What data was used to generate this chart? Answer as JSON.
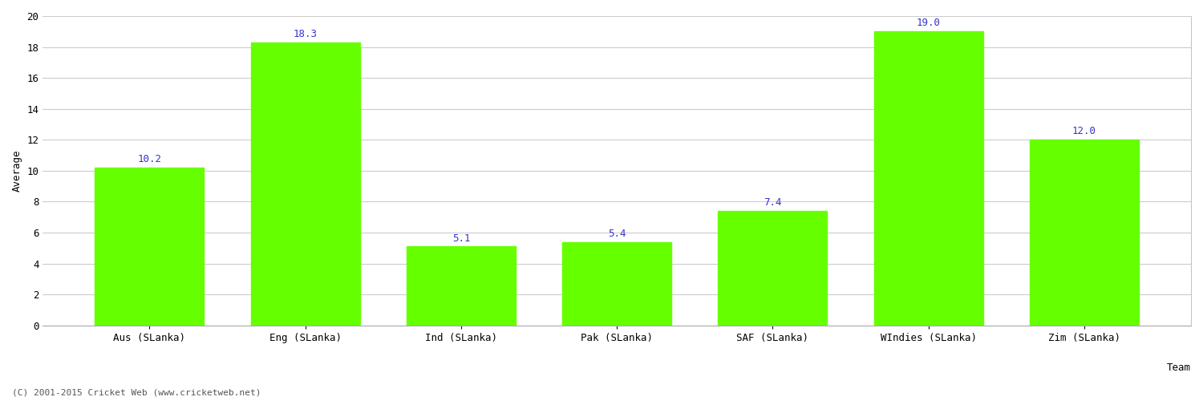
{
  "categories": [
    "Aus (SLanka)",
    "Eng (SLanka)",
    "Ind (SLanka)",
    "Pak (SLanka)",
    "SAF (SLanka)",
    "WIndies (SLanka)",
    "Zim (SLanka)"
  ],
  "values": [
    10.2,
    18.3,
    5.1,
    5.4,
    7.4,
    19.0,
    12.0
  ],
  "bar_color": "#66ff00",
  "bar_edge_color": "#66ff00",
  "value_label_color": "#3333cc",
  "value_label_fontsize": 9,
  "xlabel": "Team",
  "ylabel": "Average",
  "xlabel_fontsize": 9,
  "ylabel_fontsize": 9,
  "tick_label_fontsize": 9,
  "ylim": [
    0,
    20
  ],
  "yticks": [
    0,
    2,
    4,
    6,
    8,
    10,
    12,
    14,
    16,
    18,
    20
  ],
  "background_color": "#ffffff",
  "grid_color": "#cccccc",
  "footer_text": "(C) 2001-2015 Cricket Web (www.cricketweb.net)",
  "footer_fontsize": 8,
  "footer_color": "#555555",
  "bar_width": 0.7
}
